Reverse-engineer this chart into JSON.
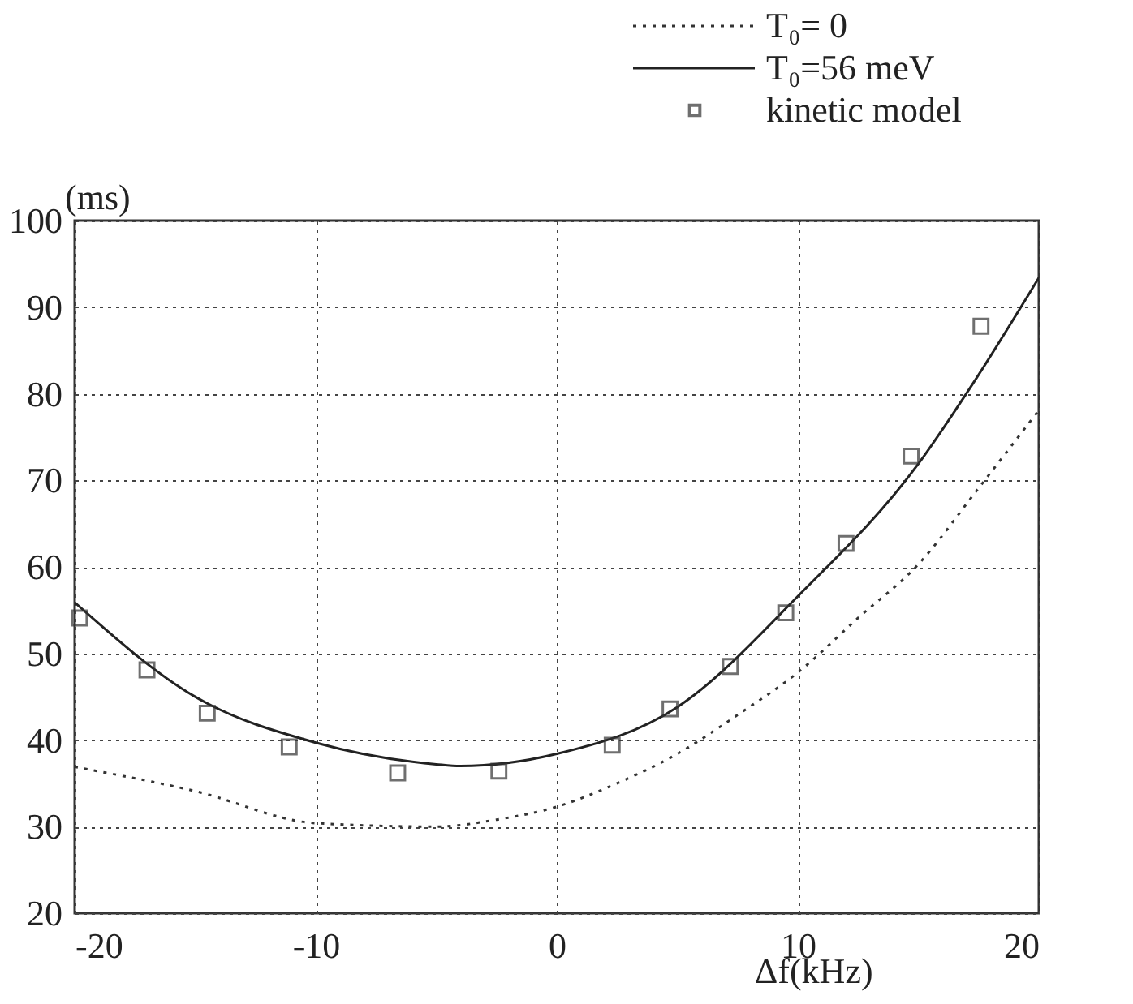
{
  "chart_data": {
    "type": "line",
    "xlabel": "Δf(kHz)",
    "ylabel": "(ms)",
    "xlim": [
      -20,
      20
    ],
    "xticks": [
      -20,
      -10,
      0,
      10,
      20
    ],
    "ylim": [
      20,
      100
    ],
    "yticks": [
      20,
      30,
      40,
      50,
      60,
      70,
      80,
      90,
      100
    ],
    "grid": true,
    "legend": "top right",
    "series": [
      {
        "name": "T₀= 0",
        "line_style": "dotted",
        "marker": "none",
        "color": "#333333",
        "x": [
          -20,
          -15,
          -10,
          -5,
          -2.5,
          0,
          2.5,
          5,
          7.5,
          10,
          12.5,
          15,
          17.5,
          20
        ],
        "values": [
          36.9,
          34.1,
          30.4,
          30.0,
          30.8,
          32.3,
          35.0,
          38.4,
          42.9,
          47.8,
          54.1,
          60.3,
          69.1,
          78.1
        ]
      },
      {
        "name": "T₀=56 meV",
        "line_style": "solid",
        "marker": "none",
        "color": "#222222",
        "x": [
          -20,
          -15,
          -10,
          -5,
          -4,
          0,
          5,
          10,
          15,
          17.2,
          20
        ],
        "values": [
          55.9,
          45.0,
          39.7,
          37.2,
          37.0,
          38.4,
          43.8,
          56.6,
          71.9,
          80.9,
          93.4
        ]
      },
      {
        "name": "kinetic model",
        "type": "scatter",
        "marker": "square",
        "color": "#333333",
        "x": [
          -19.8,
          -17.0,
          -14.5,
          -11.1,
          -6.6,
          -2.4,
          2.3,
          4.7,
          7.2,
          9.5,
          12.0,
          14.7,
          17.6
        ],
        "values": [
          54.1,
          48.1,
          43.1,
          39.2,
          36.2,
          36.4,
          39.4,
          43.6,
          48.5,
          54.7,
          62.7,
          72.8,
          87.8
        ]
      }
    ]
  }
}
